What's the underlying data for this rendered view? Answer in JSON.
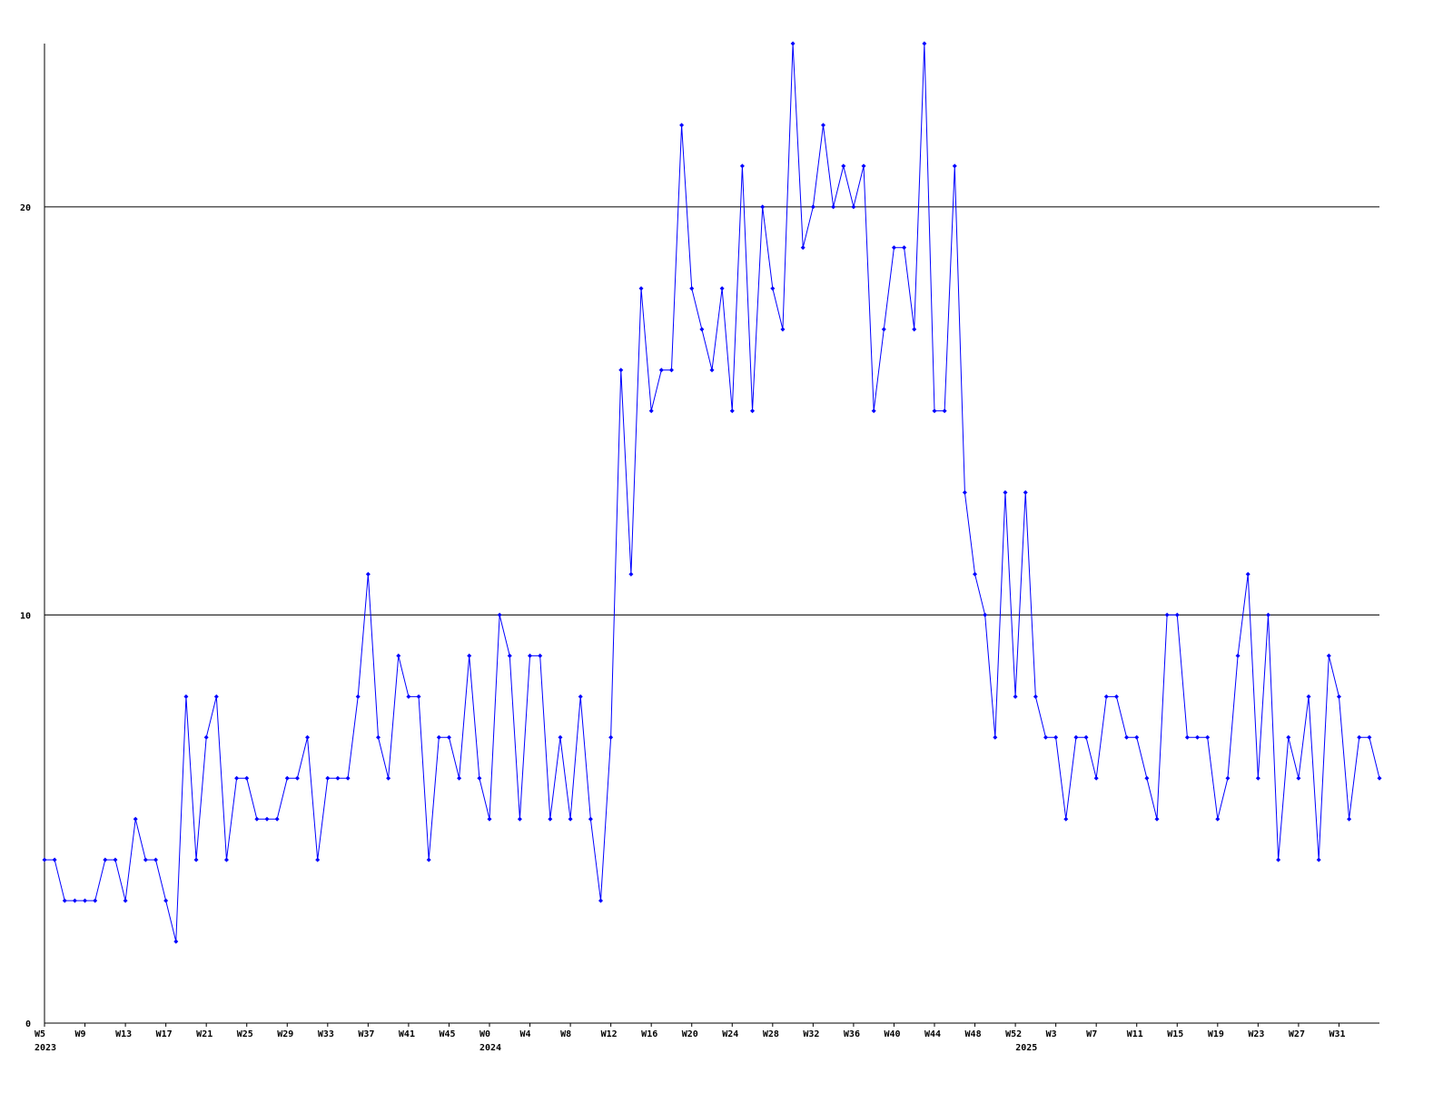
{
  "chart_data": {
    "type": "line",
    "categories": [
      "W5",
      null,
      null,
      null,
      "W9",
      null,
      null,
      null,
      "W13",
      null,
      null,
      null,
      "W17",
      null,
      null,
      null,
      "W21",
      null,
      null,
      null,
      "W25",
      null,
      null,
      null,
      "W29",
      null,
      null,
      null,
      "W33",
      null,
      null,
      null,
      "W37",
      null,
      null,
      null,
      "W41",
      null,
      null,
      null,
      "W45",
      null,
      null,
      null,
      "W0",
      null,
      null,
      null,
      "W4",
      null,
      null,
      null,
      "W8",
      null,
      null,
      null,
      "W12",
      null,
      null,
      null,
      "W16",
      null,
      null,
      null,
      "W20",
      null,
      null,
      null,
      "W24",
      null,
      null,
      null,
      "W28",
      null,
      null,
      null,
      "W32",
      null,
      null,
      null,
      "W36",
      null,
      null,
      null,
      "W40",
      null,
      null,
      null,
      "W44",
      null,
      null,
      null,
      "W48",
      null,
      null,
      null,
      "W52",
      null,
      null,
      null,
      "W3",
      null,
      null,
      null,
      "W7",
      null,
      null,
      null,
      "W11",
      null,
      null,
      null,
      "W15",
      null,
      null,
      null,
      "W19",
      null,
      null,
      null,
      "W23",
      null,
      null,
      null,
      "W27",
      null,
      null,
      null,
      "W31",
      null,
      null,
      null,
      null
    ],
    "category_years": [
      "2023",
      null,
      null,
      null,
      null,
      null,
      null,
      null,
      null,
      null,
      null,
      null,
      null,
      null,
      null,
      null,
      null,
      null,
      null,
      null,
      null,
      null,
      null,
      null,
      null,
      null,
      null,
      null,
      null,
      null,
      null,
      null,
      null,
      null,
      null,
      null,
      null,
      null,
      null,
      null,
      null,
      null,
      null,
      null,
      "2024",
      null,
      null,
      null,
      null,
      null,
      null,
      null,
      null,
      null,
      null,
      null,
      null,
      null,
      null,
      null,
      null,
      null,
      null,
      null,
      null,
      null,
      null,
      null,
      null,
      null,
      null,
      null,
      null,
      null,
      null,
      null,
      null,
      null,
      null,
      null,
      null,
      null,
      null,
      null,
      null,
      null,
      null,
      null,
      null,
      null,
      null,
      null,
      null,
      null,
      null,
      null,
      null,
      "2025",
      null,
      null,
      null,
      null,
      null,
      null,
      null,
      null,
      null,
      null,
      null,
      null,
      null,
      null,
      null,
      null,
      null,
      null,
      null,
      null,
      null,
      null,
      null,
      null,
      null,
      null,
      null,
      null,
      null,
      null,
      null,
      null,
      null,
      null,
      null
    ],
    "values": [
      4,
      4,
      3,
      3,
      3,
      3,
      4,
      4,
      3,
      5,
      4,
      4,
      3,
      2,
      8,
      4,
      7,
      8,
      4,
      6,
      6,
      5,
      5,
      5,
      6,
      6,
      7,
      4,
      6,
      6,
      6,
      8,
      11,
      7,
      6,
      9,
      8,
      8,
      4,
      7,
      7,
      6,
      9,
      6,
      5,
      10,
      9,
      5,
      9,
      9,
      5,
      7,
      5,
      8,
      5,
      3,
      7,
      16,
      11,
      18,
      15,
      16,
      16,
      22,
      18,
      17,
      16,
      18,
      15,
      21,
      15,
      20,
      18,
      17,
      24,
      19,
      20,
      22,
      20,
      21,
      20,
      21,
      15,
      17,
      19,
      19,
      17,
      24,
      15,
      15,
      21,
      13,
      11,
      10,
      7,
      13,
      8,
      13,
      8,
      7,
      7,
      5,
      7,
      7,
      6,
      8,
      8,
      7,
      7,
      6,
      5,
      10,
      10,
      7,
      7,
      7,
      5,
      6,
      9,
      11,
      6,
      10,
      4,
      7,
      6,
      8,
      4,
      9,
      8,
      5,
      7,
      7,
      6
    ],
    "color": "#0000ff",
    "ylim": [
      0,
      24
    ],
    "yticks": [
      0,
      10,
      20
    ],
    "grid": true
  }
}
